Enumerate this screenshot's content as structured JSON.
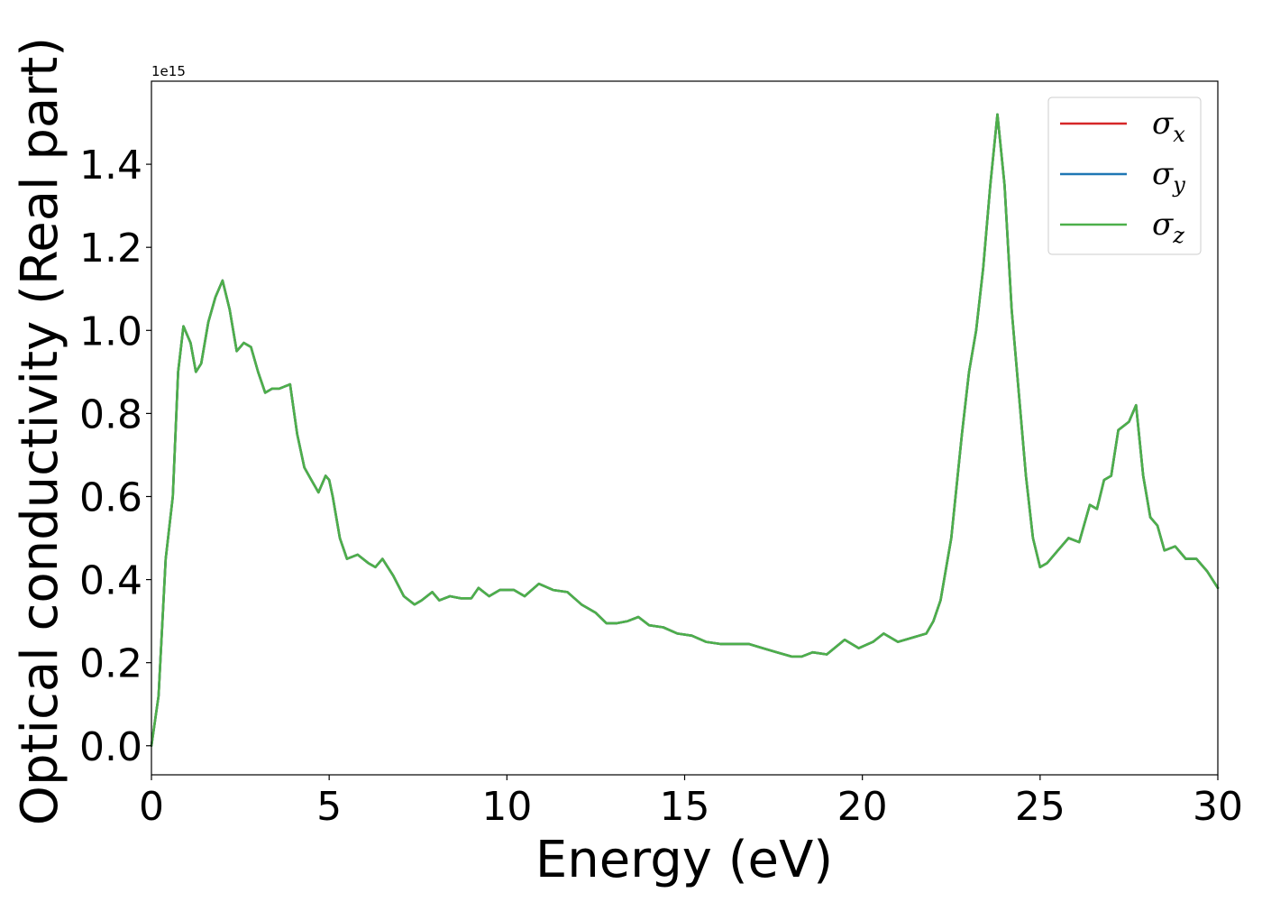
{
  "chart_data": {
    "type": "line",
    "title": "",
    "xlabel": "Energy (eV)",
    "ylabel": "Optical conductivity (Real part)",
    "y_offset_label": "1e15",
    "xlim": [
      0,
      30
    ],
    "ylim": [
      -0.07,
      1.6
    ],
    "xticks": [
      0,
      5,
      10,
      15,
      20,
      25,
      30
    ],
    "xtick_labels": [
      "0",
      "5",
      "10",
      "15",
      "20",
      "25",
      "30"
    ],
    "yticks": [
      0.0,
      0.2,
      0.4,
      0.6,
      0.8,
      1.0,
      1.2,
      1.4
    ],
    "ytick_labels": [
      "0.0",
      "0.2",
      "0.4",
      "0.6",
      "0.8",
      "1.0",
      "1.2",
      "1.4"
    ],
    "grid": false,
    "legend_position": "top-right",
    "x": [
      0,
      0.2,
      0.4,
      0.6,
      0.75,
      0.9,
      1.1,
      1.25,
      1.4,
      1.6,
      1.8,
      2.0,
      2.2,
      2.4,
      2.6,
      2.8,
      3.0,
      3.2,
      3.4,
      3.6,
      3.9,
      4.1,
      4.3,
      4.5,
      4.7,
      4.9,
      5.0,
      5.1,
      5.3,
      5.5,
      5.8,
      6.1,
      6.3,
      6.5,
      6.8,
      7.1,
      7.4,
      7.6,
      7.9,
      8.1,
      8.4,
      8.7,
      9.0,
      9.2,
      9.5,
      9.8,
      10.2,
      10.5,
      10.9,
      11.3,
      11.7,
      12.1,
      12.5,
      12.8,
      13.1,
      13.4,
      13.7,
      14.0,
      14.4,
      14.8,
      15.2,
      15.6,
      16.0,
      16.4,
      16.8,
      17.2,
      17.6,
      18.0,
      18.3,
      18.6,
      19.0,
      19.5,
      19.9,
      20.3,
      20.6,
      21.0,
      21.4,
      21.8,
      22.0,
      22.2,
      22.5,
      22.8,
      23.0,
      23.2,
      23.4,
      23.6,
      23.8,
      24.0,
      24.2,
      24.4,
      24.6,
      24.8,
      25.0,
      25.2,
      25.5,
      25.8,
      26.1,
      26.4,
      26.6,
      26.8,
      27.0,
      27.2,
      27.5,
      27.7,
      27.9,
      28.1,
      28.3,
      28.5,
      28.8,
      29.1,
      29.4,
      29.7,
      30.0
    ],
    "series": [
      {
        "name": "σx",
        "label_base": "σ",
        "label_sub": "x",
        "color": "#d62728",
        "values": [
          0.0,
          0.12,
          0.45,
          0.6,
          0.9,
          1.01,
          0.97,
          0.9,
          0.92,
          1.02,
          1.08,
          1.12,
          1.05,
          0.95,
          0.97,
          0.96,
          0.9,
          0.85,
          0.86,
          0.86,
          0.87,
          0.75,
          0.67,
          0.64,
          0.61,
          0.65,
          0.64,
          0.6,
          0.5,
          0.45,
          0.46,
          0.44,
          0.43,
          0.45,
          0.41,
          0.36,
          0.34,
          0.35,
          0.37,
          0.35,
          0.36,
          0.355,
          0.355,
          0.38,
          0.36,
          0.375,
          0.375,
          0.36,
          0.39,
          0.375,
          0.37,
          0.34,
          0.32,
          0.295,
          0.295,
          0.3,
          0.31,
          0.29,
          0.285,
          0.27,
          0.265,
          0.25,
          0.245,
          0.245,
          0.245,
          0.235,
          0.225,
          0.215,
          0.215,
          0.225,
          0.22,
          0.255,
          0.235,
          0.25,
          0.27,
          0.25,
          0.26,
          0.27,
          0.3,
          0.35,
          0.5,
          0.75,
          0.9,
          1.0,
          1.15,
          1.35,
          1.52,
          1.35,
          1.05,
          0.85,
          0.65,
          0.5,
          0.43,
          0.44,
          0.47,
          0.5,
          0.49,
          0.58,
          0.57,
          0.64,
          0.65,
          0.76,
          0.78,
          0.82,
          0.65,
          0.55,
          0.53,
          0.47,
          0.48,
          0.45,
          0.45,
          0.42,
          0.38
        ]
      },
      {
        "name": "σy",
        "label_base": "σ",
        "label_sub": "y",
        "color": "#1f77b4",
        "values": [
          0.0,
          0.12,
          0.45,
          0.6,
          0.9,
          1.01,
          0.97,
          0.9,
          0.92,
          1.02,
          1.08,
          1.12,
          1.05,
          0.95,
          0.97,
          0.96,
          0.9,
          0.85,
          0.86,
          0.86,
          0.87,
          0.75,
          0.67,
          0.64,
          0.61,
          0.65,
          0.64,
          0.6,
          0.5,
          0.45,
          0.46,
          0.44,
          0.43,
          0.45,
          0.41,
          0.36,
          0.34,
          0.35,
          0.37,
          0.35,
          0.36,
          0.355,
          0.355,
          0.38,
          0.36,
          0.375,
          0.375,
          0.36,
          0.39,
          0.375,
          0.37,
          0.34,
          0.32,
          0.295,
          0.295,
          0.3,
          0.31,
          0.29,
          0.285,
          0.27,
          0.265,
          0.25,
          0.245,
          0.245,
          0.245,
          0.235,
          0.225,
          0.215,
          0.215,
          0.225,
          0.22,
          0.255,
          0.235,
          0.25,
          0.27,
          0.25,
          0.26,
          0.27,
          0.3,
          0.35,
          0.5,
          0.75,
          0.9,
          1.0,
          1.15,
          1.35,
          1.52,
          1.35,
          1.05,
          0.85,
          0.65,
          0.5,
          0.43,
          0.44,
          0.47,
          0.5,
          0.49,
          0.58,
          0.57,
          0.64,
          0.65,
          0.76,
          0.78,
          0.82,
          0.65,
          0.55,
          0.53,
          0.47,
          0.48,
          0.45,
          0.45,
          0.42,
          0.38
        ]
      },
      {
        "name": "σz",
        "label_base": "σ",
        "label_sub": "z",
        "color": "#4daf4a",
        "values": [
          0.0,
          0.12,
          0.45,
          0.6,
          0.9,
          1.01,
          0.97,
          0.9,
          0.92,
          1.02,
          1.08,
          1.12,
          1.05,
          0.95,
          0.97,
          0.96,
          0.9,
          0.85,
          0.86,
          0.86,
          0.87,
          0.75,
          0.67,
          0.64,
          0.61,
          0.65,
          0.64,
          0.6,
          0.5,
          0.45,
          0.46,
          0.44,
          0.43,
          0.45,
          0.41,
          0.36,
          0.34,
          0.35,
          0.37,
          0.35,
          0.36,
          0.355,
          0.355,
          0.38,
          0.36,
          0.375,
          0.375,
          0.36,
          0.39,
          0.375,
          0.37,
          0.34,
          0.32,
          0.295,
          0.295,
          0.3,
          0.31,
          0.29,
          0.285,
          0.27,
          0.265,
          0.25,
          0.245,
          0.245,
          0.245,
          0.235,
          0.225,
          0.215,
          0.215,
          0.225,
          0.22,
          0.255,
          0.235,
          0.25,
          0.27,
          0.25,
          0.26,
          0.27,
          0.3,
          0.35,
          0.5,
          0.75,
          0.9,
          1.0,
          1.15,
          1.35,
          1.52,
          1.35,
          1.05,
          0.85,
          0.65,
          0.5,
          0.43,
          0.44,
          0.47,
          0.5,
          0.49,
          0.58,
          0.57,
          0.64,
          0.65,
          0.76,
          0.78,
          0.82,
          0.65,
          0.55,
          0.53,
          0.47,
          0.48,
          0.45,
          0.45,
          0.42,
          0.38
        ]
      }
    ]
  }
}
